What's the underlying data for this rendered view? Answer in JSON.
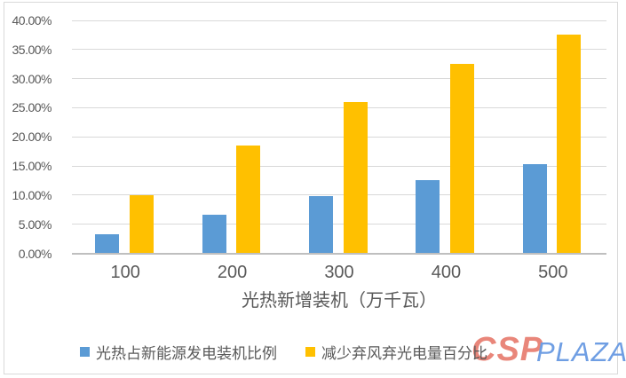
{
  "chart_data": {
    "type": "bar",
    "categories": [
      "100",
      "200",
      "300",
      "400",
      "500"
    ],
    "series": [
      {
        "name": "光热占新能源发电装机比例",
        "color": "#5B9BD5",
        "values": [
          3.3,
          6.6,
          9.8,
          12.6,
          15.3
        ]
      },
      {
        "name": "减少弃风弃光电量百分比",
        "color": "#FFC000",
        "values": [
          10.0,
          18.5,
          26.0,
          32.5,
          37.6
        ]
      }
    ],
    "title": "",
    "xlabel": "光热新增装机（万千瓦）",
    "ylabel": "",
    "ylim": [
      0,
      40
    ],
    "ytick_step": 5,
    "ytick_labels": [
      "0.00%",
      "5.00%",
      "10.00%",
      "15.00%",
      "20.00%",
      "25.00%",
      "30.00%",
      "35.00%",
      "40.00%"
    ],
    "grid": true,
    "legend_position": "bottom"
  },
  "watermark": {
    "part1": "CSP",
    "part2": "PLAZA",
    "part1_color": "#E15747",
    "part2_color": "#6F9EE3"
  },
  "colors": {
    "gridline": "#D9D9D9",
    "axis_line": "#BFBFBF",
    "tick_text": "#595959",
    "background": "#FFFFFF",
    "border": "#D9D9D9"
  }
}
